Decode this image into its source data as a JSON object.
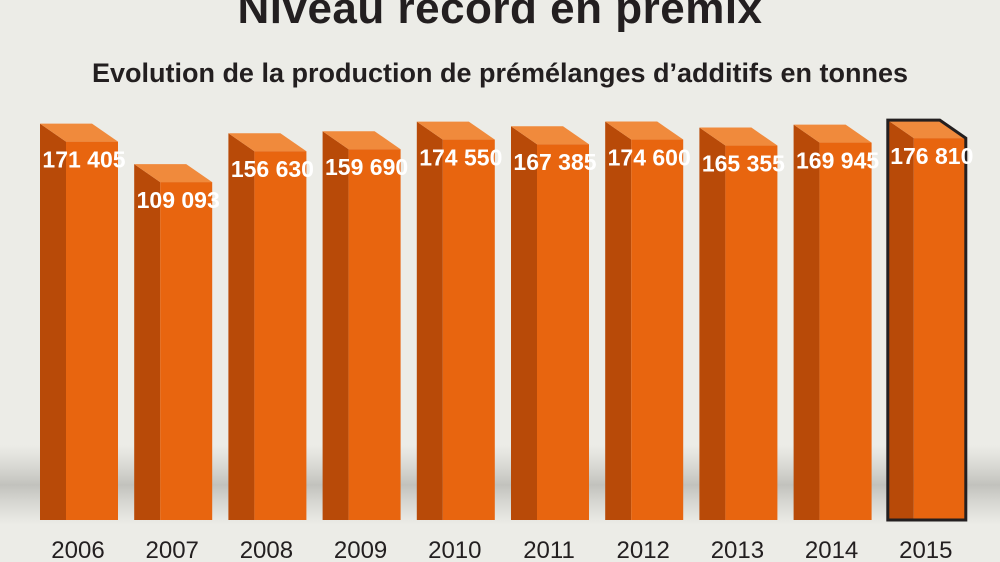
{
  "chart_data": {
    "type": "bar",
    "title": "Niveau record en prémix",
    "subtitle": "Evolution de la production de prémélanges d’additifs en tonnes",
    "xlabel": "",
    "ylabel": "",
    "unit": "tonnes",
    "categories": [
      "2006",
      "2007",
      "2008",
      "2009",
      "2010",
      "2011",
      "2012",
      "2013",
      "2014",
      "2015"
    ],
    "values": [
      171405,
      109093,
      156630,
      159690,
      174550,
      167385,
      174600,
      165355,
      169945,
      176810
    ],
    "value_labels": [
      "171 405",
      "109 093",
      "156 630",
      "159 690",
      "174 550",
      "167 385",
      "174 600",
      "165 355",
      "169 945",
      "176 810"
    ],
    "highlight_index": 9,
    "grid": false,
    "legend": "none",
    "colors": {
      "bar_front": "#e8650f",
      "bar_side": "#b84a08",
      "bar_top": "#f08a3c",
      "highlight_outline": "#231f20",
      "background": "#ecece7",
      "text": "#231f20"
    }
  }
}
